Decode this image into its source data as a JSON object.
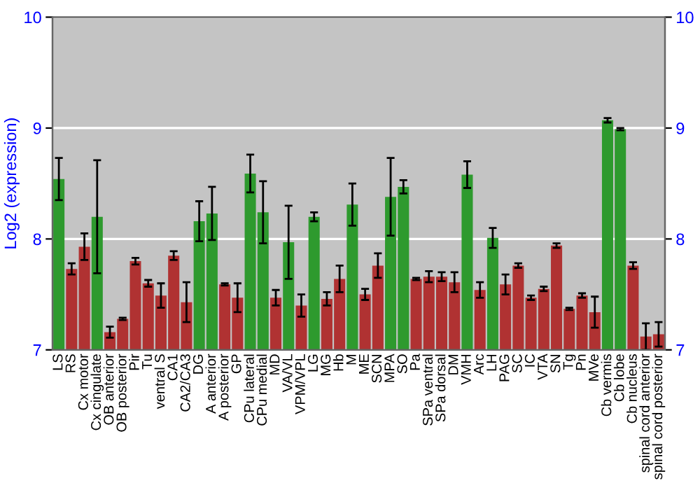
{
  "chart_data": {
    "type": "bar",
    "ylabel": "Log2 (expression)",
    "categories": [
      "LS",
      "RS",
      "Cx motor",
      "Cx cingulate",
      "OB anterior",
      "OB posterior",
      "Pir",
      "Tu",
      "ventral S",
      "CA1",
      "CA2/CA3",
      "DG",
      "A anterior",
      "A posterior",
      "GP",
      "CPu lateral",
      "CPu medial",
      "MD",
      "VA/VL",
      "VPM/VPL",
      "LG",
      "MG",
      "Hb",
      "M",
      "ME",
      "SCN",
      "MPA",
      "SO",
      "Pa",
      "SPa ventral",
      "SPa dorsal",
      "DM",
      "VMH",
      "Arc",
      "LH",
      "PAG",
      "SC",
      "IC",
      "VTA",
      "SN",
      "Tg",
      "Pn",
      "MVe",
      "Cb vermis",
      "Cb lobe",
      "Cb nucleus",
      "spinal cord anterior",
      "spinal cord posterior"
    ],
    "values": [
      8.54,
      7.73,
      7.93,
      8.2,
      7.16,
      7.28,
      7.8,
      7.6,
      7.49,
      7.85,
      7.43,
      8.16,
      8.23,
      7.59,
      7.47,
      8.59,
      8.24,
      7.47,
      7.97,
      7.4,
      8.2,
      7.46,
      7.64,
      8.31,
      7.5,
      7.76,
      8.38,
      8.47,
      7.64,
      7.66,
      7.66,
      7.61,
      8.58,
      7.54,
      8.01,
      7.59,
      7.76,
      7.47,
      7.55,
      7.94,
      7.37,
      7.49,
      7.34,
      9.07,
      8.99,
      7.76,
      7.12,
      7.14
    ],
    "errors": [
      0.19,
      0.05,
      0.12,
      0.51,
      0.05,
      0.01,
      0.03,
      0.03,
      0.11,
      0.04,
      0.18,
      0.18,
      0.24,
      0.01,
      0.13,
      0.17,
      0.28,
      0.07,
      0.33,
      0.1,
      0.04,
      0.06,
      0.12,
      0.19,
      0.05,
      0.11,
      0.35,
      0.06,
      0.01,
      0.05,
      0.04,
      0.09,
      0.12,
      0.07,
      0.09,
      0.09,
      0.02,
      0.02,
      0.02,
      0.02,
      0.01,
      0.02,
      0.14,
      0.02,
      0.01,
      0.03,
      0.12,
      0.11
    ],
    "colors": [
      "#2e9a2e",
      "#b03232",
      "#b03232",
      "#2e9a2e",
      "#b03232",
      "#b03232",
      "#b03232",
      "#b03232",
      "#b03232",
      "#b03232",
      "#b03232",
      "#2e9a2e",
      "#2e9a2e",
      "#b03232",
      "#b03232",
      "#2e9a2e",
      "#2e9a2e",
      "#b03232",
      "#2e9a2e",
      "#b03232",
      "#2e9a2e",
      "#b03232",
      "#b03232",
      "#2e9a2e",
      "#b03232",
      "#b03232",
      "#2e9a2e",
      "#2e9a2e",
      "#b03232",
      "#b03232",
      "#b03232",
      "#b03232",
      "#2e9a2e",
      "#b03232",
      "#2e9a2e",
      "#b03232",
      "#b03232",
      "#b03232",
      "#b03232",
      "#b03232",
      "#b03232",
      "#b03232",
      "#b03232",
      "#2e9a2e",
      "#2e9a2e",
      "#b03232",
      "#b03232",
      "#b03232"
    ],
    "ylim": [
      7,
      10
    ],
    "yticks": [
      7,
      8,
      9,
      10
    ],
    "y2lim": [
      7,
      10
    ],
    "y2ticks": [
      7,
      8,
      9,
      10
    ],
    "grid": "y"
  }
}
